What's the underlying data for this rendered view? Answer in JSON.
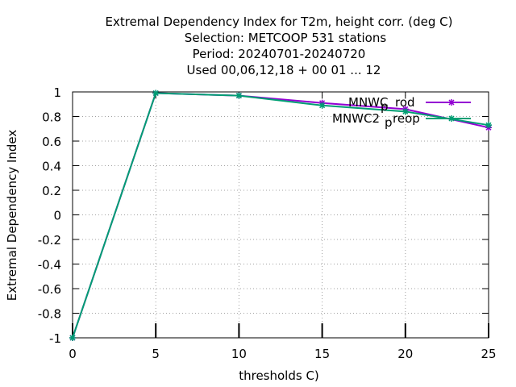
{
  "chart_data": {
    "type": "line",
    "title_lines": [
      "Extremal Dependency Index  for T2m, height corr. (deg C)",
      "Selection: METCOOP    531 stations",
      "Period: 20240701-20240720",
      "Used  00,06,12,18 + 00 01 ... 12"
    ],
    "xlabel": "thresholds C)",
    "ylabel": "Extremal Dependency Index",
    "xlim": [
      0,
      25
    ],
    "ylim": [
      -1,
      1
    ],
    "xticks": [
      "0",
      "5",
      "10",
      "15",
      "20",
      "25"
    ],
    "yticks": [
      "1",
      "0.8",
      "0.6",
      "0.4",
      "0.2",
      "0",
      "-0.2",
      "-0.4",
      "-0.6",
      "-0.8",
      "-1"
    ],
    "grid": true,
    "legend_position": "top-right",
    "series": [
      {
        "name_main": "MNWC",
        "name_sub": "p",
        "name_rest": "rod",
        "color": "#9400d3",
        "marker": "star",
        "x": [
          0,
          5,
          10,
          15,
          20,
          25
        ],
        "y": [
          -1.0,
          0.99,
          0.97,
          0.91,
          0.86,
          0.71
        ]
      },
      {
        "name_main": "MNWC2",
        "name_sub": "p",
        "name_rest": "reop",
        "color": "#009e73",
        "marker": "star",
        "x": [
          0,
          5,
          10,
          15,
          20,
          25
        ],
        "y": [
          -1.0,
          0.99,
          0.97,
          0.89,
          0.84,
          0.73
        ]
      }
    ]
  }
}
